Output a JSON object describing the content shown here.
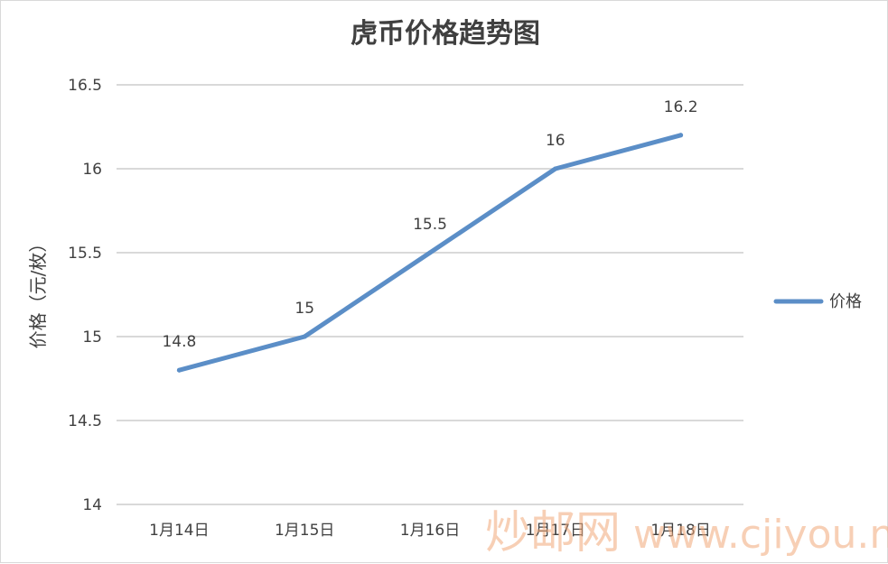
{
  "chart_data": {
    "type": "line",
    "title": "虎币价格趋势图",
    "xlabel": "",
    "ylabel": "价格（元/枚）",
    "categories": [
      "1月14日",
      "1月15日",
      "1月16日",
      "1月17日",
      "1月18日"
    ],
    "series": [
      {
        "name": "价格",
        "values": [
          14.8,
          15,
          15.5,
          16,
          16.2
        ],
        "color": "#5b8ec7"
      }
    ],
    "data_labels": [
      "14.8",
      "15",
      "15.5",
      "16",
      "16.2"
    ],
    "ylim": [
      14,
      16.5
    ],
    "yticks": [
      14,
      14.5,
      15,
      15.5,
      16,
      16.5
    ],
    "ytick_labels": [
      "14",
      "14.5",
      "15",
      "15.5",
      "16",
      "16.5"
    ],
    "grid": true,
    "legend_position": "right"
  },
  "watermark": {
    "cn_text": "炒邮网",
    "url_text": "www.cjiyou.net",
    "color": "#f2a97a"
  }
}
